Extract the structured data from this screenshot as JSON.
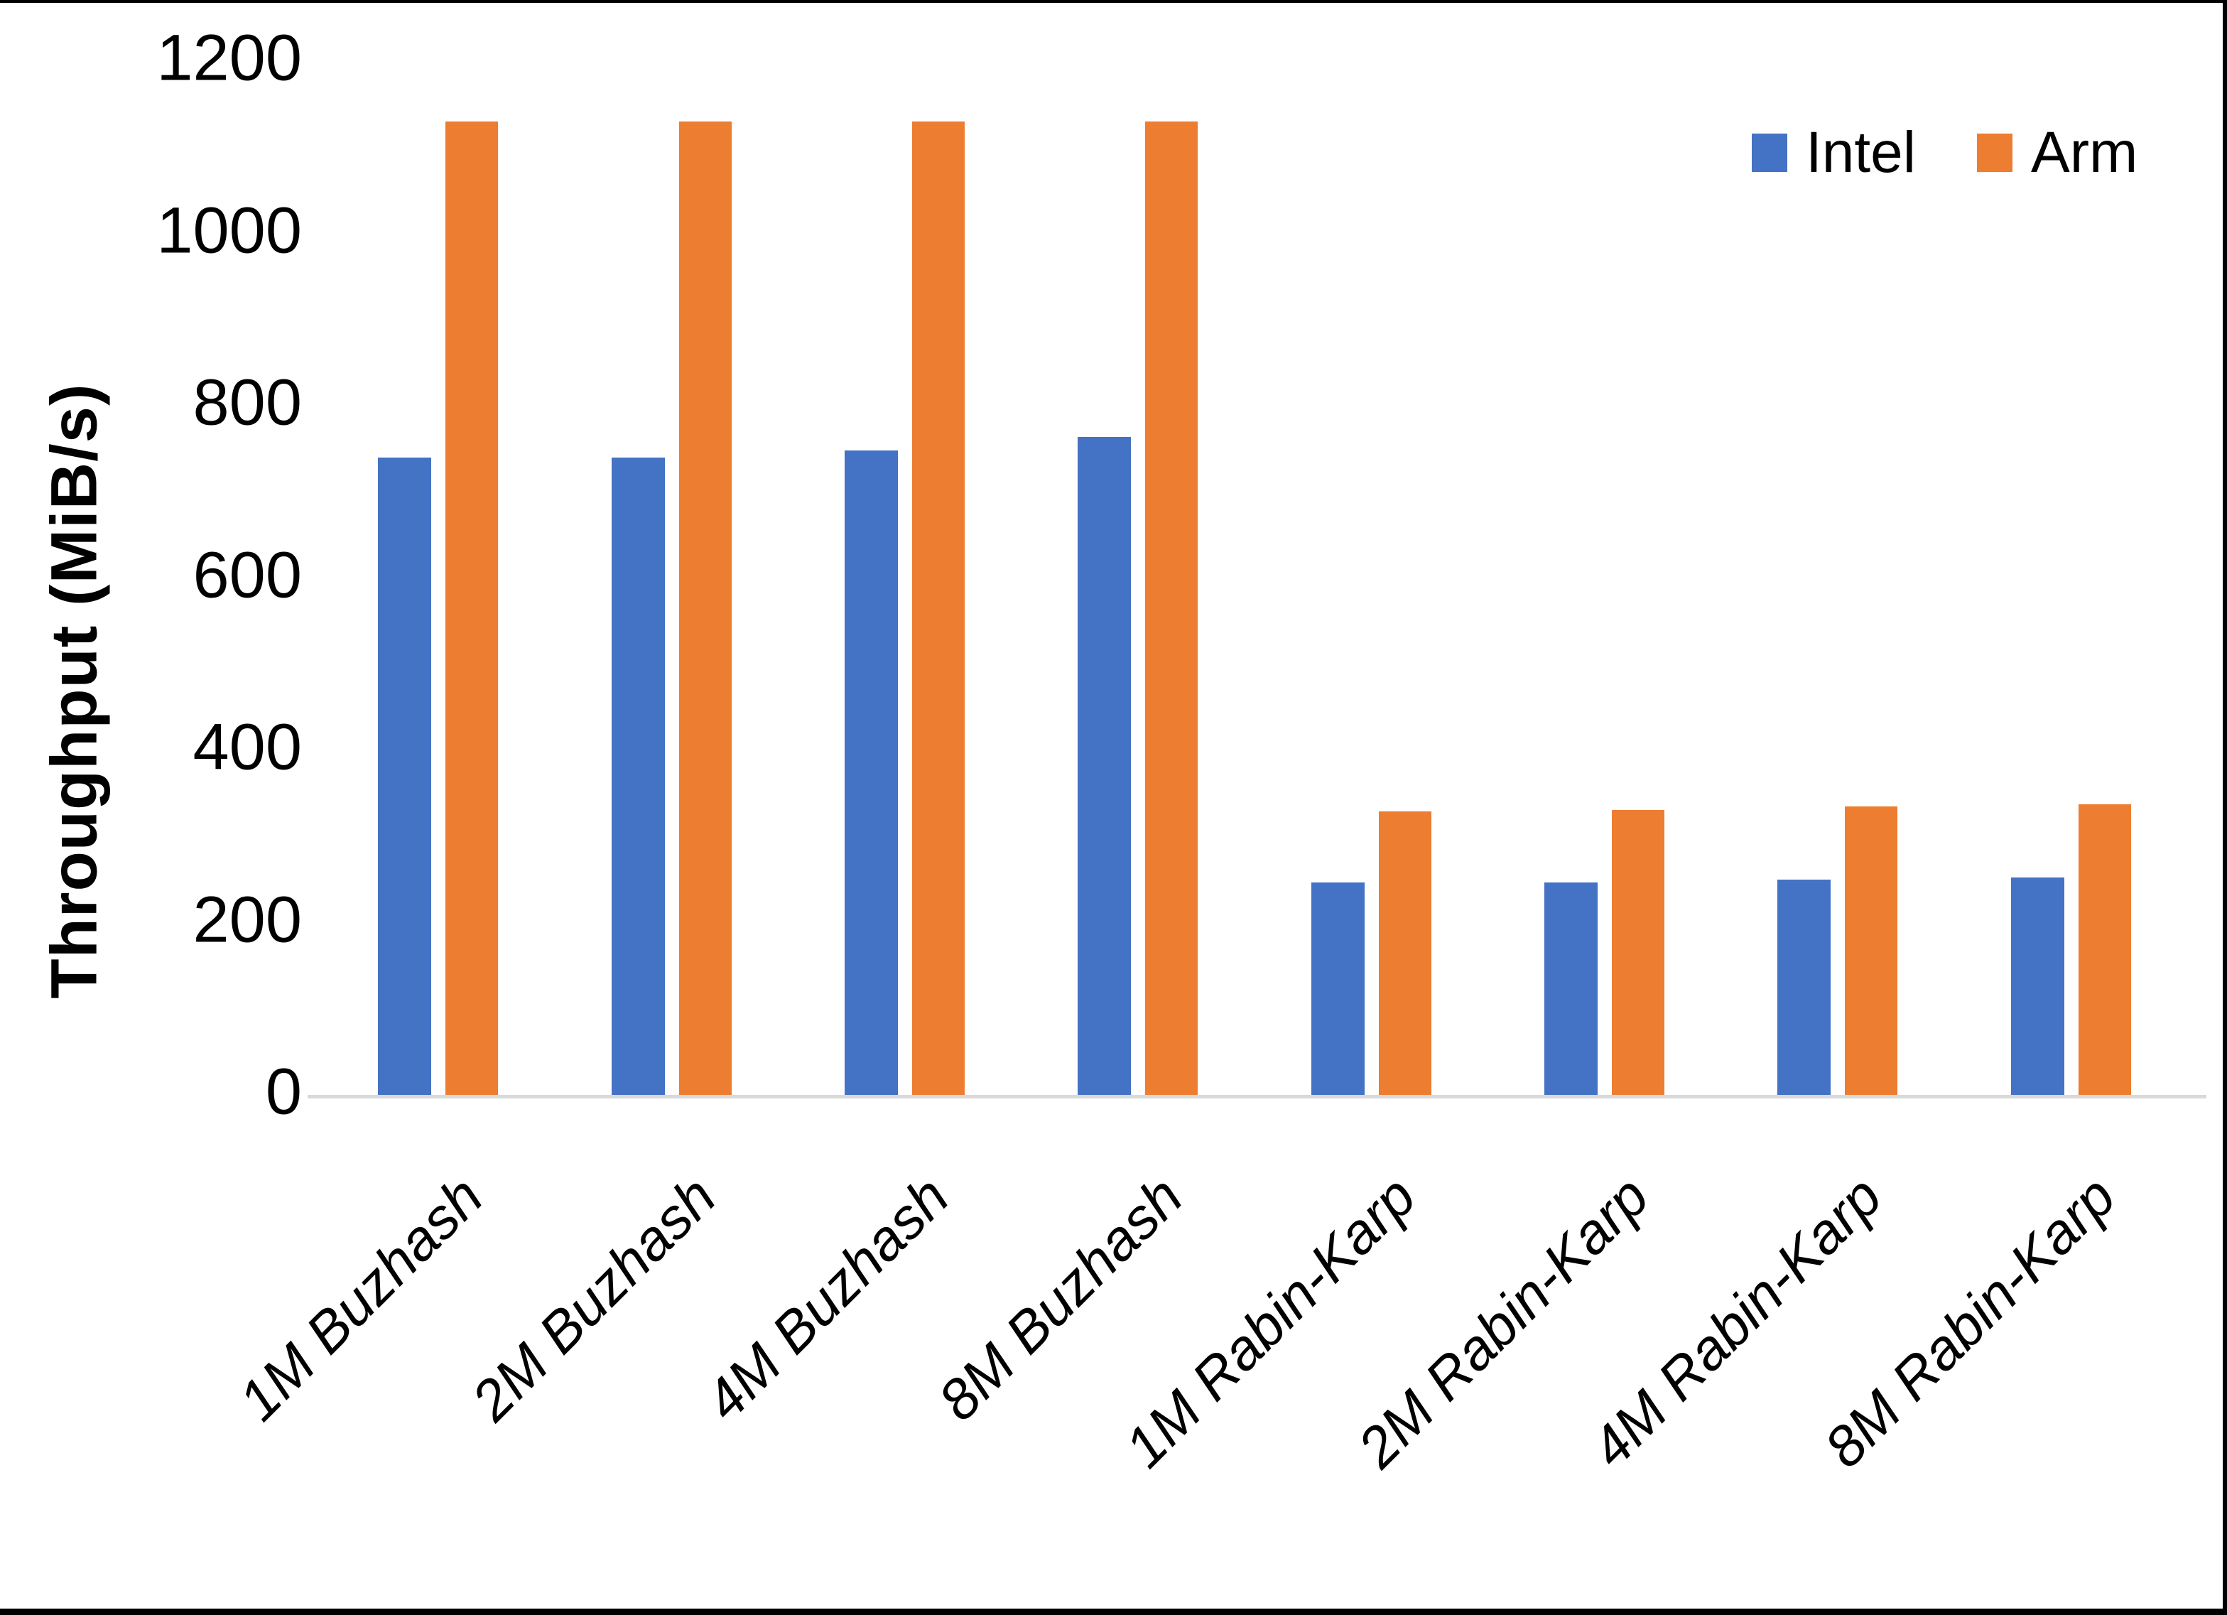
{
  "chart_data": {
    "type": "bar",
    "title": "",
    "xlabel": "",
    "ylabel": "Throughput (MiB/s)",
    "ylim": [
      0,
      1200
    ],
    "yticks": [
      0,
      200,
      400,
      600,
      800,
      1000,
      1200
    ],
    "grid": false,
    "legend_position": "top-right",
    "categories": [
      "1M Buzhash",
      "2M Buzhash",
      "4M Buzhash",
      "8M Buzhash",
      "1M Rabin-Karp",
      "2M Rabin-Karp",
      "4M Rabin-Karp",
      "8M Rabin-Karp"
    ],
    "series": [
      {
        "name": "Intel",
        "color": "#4472C4",
        "values": [
          740,
          740,
          748,
          764,
          247,
          247,
          250,
          252
        ]
      },
      {
        "name": "Arm",
        "color": "#ED7D31",
        "values": [
          1130,
          1130,
          1130,
          1130,
          329,
          331,
          335,
          337
        ]
      }
    ],
    "axis_line_color": "#D9D9D9",
    "text_color": "#000000"
  }
}
